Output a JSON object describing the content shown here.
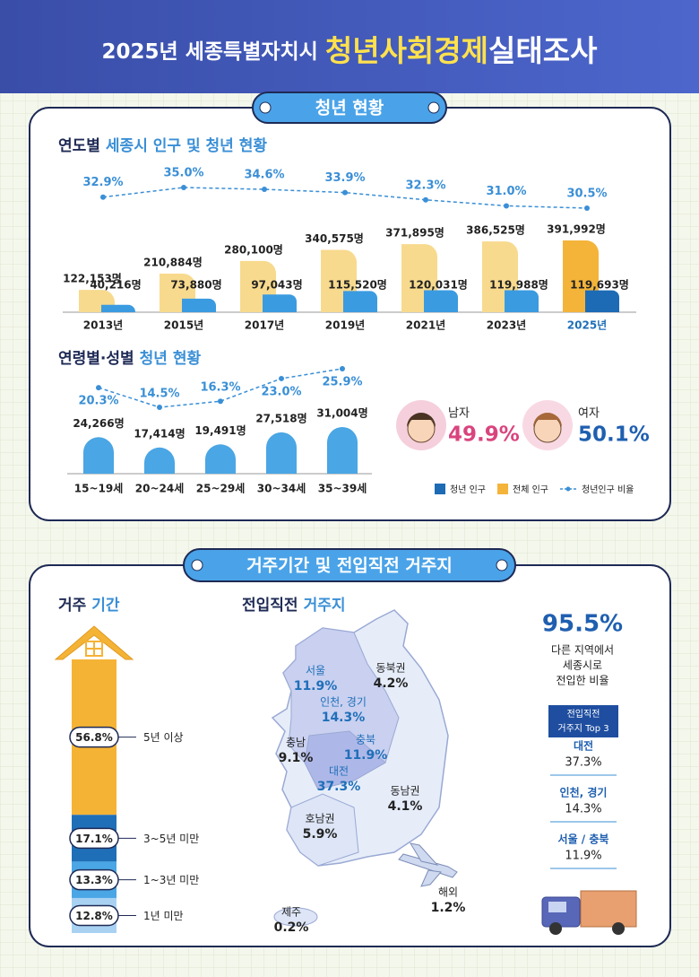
{
  "header": {
    "lead": "2025년 세종특별자치시",
    "highlight": "청년사회경제",
    "suffix": "실태조사"
  },
  "section1": {
    "badge": "청년 현황"
  },
  "chart_data": [
    {
      "type": "bar",
      "title": {
        "lead": "연도별",
        "rest": "세종시 인구 및 청년 현황"
      },
      "categories": [
        "2013년",
        "2015년",
        "2017년",
        "2019년",
        "2021년",
        "2023년",
        "2025년"
      ],
      "series": [
        {
          "name": "청년 인구",
          "type": "bar",
          "color": "#3b9be0",
          "highlight_color": "#1d6bb5",
          "values": [
            40216,
            73880,
            97043,
            115520,
            120031,
            119988,
            119693
          ],
          "value_labels": [
            "40,216명",
            "73,880명",
            "97,043명",
            "115,520명",
            "120,031명",
            "119,988명",
            "119,693명"
          ]
        },
        {
          "name": "전체 인구",
          "type": "bar",
          "color": "#f8da8e",
          "highlight_color": "#f4b43a",
          "values": [
            122153,
            210884,
            280100,
            340575,
            371895,
            386525,
            391992
          ],
          "value_labels": [
            "122,153명",
            "210,884명",
            "280,100명",
            "340,575명",
            "371,895명",
            "386,525명",
            "391,992명"
          ]
        },
        {
          "name": "청년인구 비율",
          "type": "line",
          "color": "#3a8fd6",
          "values": [
            32.9,
            35.0,
            34.6,
            33.9,
            32.3,
            31.0,
            30.5
          ],
          "value_labels": [
            "32.9%",
            "35.0%",
            "34.6%",
            "33.9%",
            "32.3%",
            "31.0%",
            "30.5%"
          ]
        }
      ]
    },
    {
      "type": "bar",
      "title": {
        "lead": "연령별·성별",
        "rest": "청년 현황"
      },
      "categories": [
        "15~19세",
        "20~24세",
        "25~29세",
        "30~34세",
        "35~39세"
      ],
      "series": [
        {
          "type": "bar",
          "color": "#4aa6e4",
          "values": [
            24266,
            17414,
            19491,
            27518,
            31004
          ],
          "value_labels": [
            "24,266명",
            "17,414명",
            "19,491명",
            "27,518명",
            "31,004명"
          ]
        },
        {
          "type": "line",
          "color": "#3a8fd6",
          "values": [
            20.3,
            14.5,
            16.3,
            23.0,
            25.9
          ],
          "value_labels": [
            "20.3%",
            "14.5%",
            "16.3%",
            "23.0%",
            "25.9%"
          ]
        }
      ]
    },
    {
      "type": "stacked_bar",
      "title": {
        "lead": "거주",
        "rest": "기간"
      },
      "categories": [
        "5년 이상",
        "3~5년 미만",
        "1~3년 미만",
        "1년 미만"
      ],
      "values": [
        56.8,
        17.1,
        13.3,
        12.8
      ],
      "value_labels": [
        "56.8%",
        "17.1%",
        "13.3%",
        "12.8%"
      ],
      "colors": [
        "#f5b335",
        "#1f6fb8",
        "#4aa6e4",
        "#a9d2f2"
      ]
    }
  ],
  "gender": [
    {
      "label": "남자",
      "value": "49.9%",
      "color": "#d9447e"
    },
    {
      "label": "여자",
      "value": "50.1%",
      "color": "#1f5fb0"
    }
  ],
  "section2": {
    "badge": "거주기간 및 전입직전 거주지"
  },
  "origin": {
    "title": {
      "lead": "전입직전",
      "rest": "거주지"
    },
    "regions": [
      {
        "name": "서울",
        "value": "11.9%"
      },
      {
        "name": "동북권",
        "value": "4.2%"
      },
      {
        "name": "인천, 경기",
        "value": "14.3%"
      },
      {
        "name": "충남",
        "value": "9.1%"
      },
      {
        "name": "충북",
        "value": "11.9%"
      },
      {
        "name": "대전",
        "value": "37.3%"
      },
      {
        "name": "동남권",
        "value": "4.1%"
      },
      {
        "name": "호남권",
        "value": "5.9%"
      },
      {
        "name": "제주",
        "value": "0.2%"
      },
      {
        "name": "해외",
        "value": "1.2%"
      }
    ]
  },
  "summary": {
    "value": "95.5%",
    "lines": [
      "다른 지역에서",
      "세종시로",
      "전입한 비율"
    ],
    "box": [
      "전입직전",
      "거주지 Top 3"
    ],
    "top3": [
      {
        "name": "대전",
        "value": "37.3%"
      },
      {
        "name": "인천, 경기",
        "value": "14.3%"
      },
      {
        "name": "서울 / 충북",
        "value": "11.9%"
      }
    ]
  }
}
